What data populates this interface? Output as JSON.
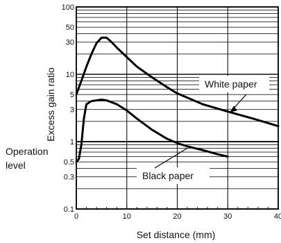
{
  "chart_data": {
    "type": "line",
    "title": "",
    "xlabel": "Set distance (mm)",
    "ylabel": "Excess gain ratio",
    "xlim": [
      0,
      40
    ],
    "ylim": [
      0.1,
      100
    ],
    "y_scale": "log",
    "grid": true,
    "x_ticks": [
      "0",
      "10",
      "20",
      "30",
      "40"
    ],
    "y_ticks": [
      "0.1",
      "0.3",
      "0.5",
      "1",
      "3",
      "5",
      "10",
      "30",
      "50",
      "100"
    ],
    "operation_level": {
      "label_line1": "Operation",
      "label_line2": "level",
      "value": 1
    },
    "series": [
      {
        "name": "White paper",
        "color": "#000000",
        "x": [
          0,
          1,
          2,
          3,
          4,
          5,
          6,
          7,
          8,
          10,
          12,
          15,
          18,
          20,
          25,
          30,
          35,
          40
        ],
        "y": [
          5,
          8,
          13,
          20,
          29,
          35,
          35,
          30,
          25,
          18,
          13,
          9,
          6.4,
          5.2,
          3.6,
          2.8,
          2.2,
          1.7
        ]
      },
      {
        "name": "Black paper",
        "color": "#000000",
        "x": [
          0,
          0.5,
          1,
          1.5,
          2,
          3,
          4,
          5,
          6,
          8,
          10,
          12,
          15,
          18,
          20,
          22,
          25,
          28,
          30
        ],
        "y": [
          0.5,
          0.55,
          0.9,
          2.2,
          3.6,
          4.0,
          4.1,
          4.2,
          4.1,
          3.6,
          2.9,
          2.2,
          1.5,
          1.1,
          0.95,
          0.85,
          0.75,
          0.65,
          0.6
        ]
      }
    ],
    "annotations": [
      {
        "text": "White paper",
        "series": "White paper",
        "x": 30.5,
        "y": 2.75
      },
      {
        "text": "Black paper",
        "series": "Black paper",
        "x": 22,
        "y": 0.8
      }
    ]
  }
}
